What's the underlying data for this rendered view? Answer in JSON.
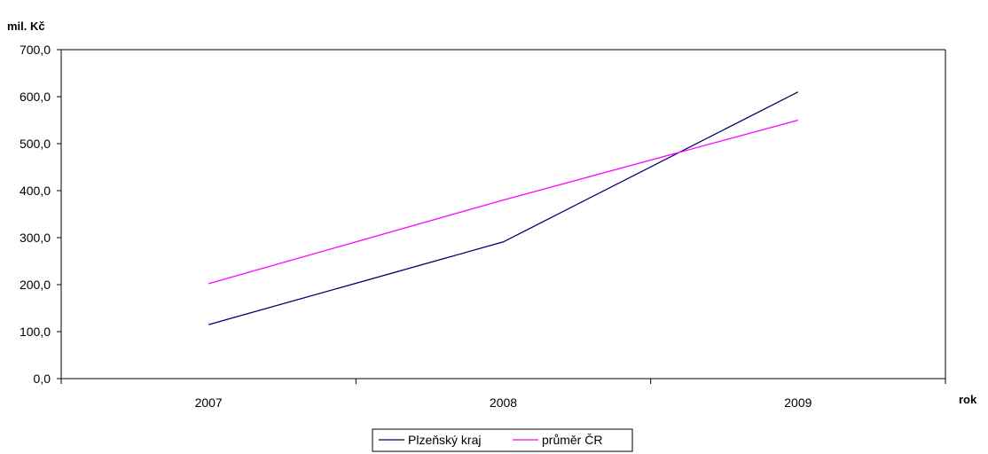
{
  "chart_data": {
    "type": "line",
    "ylabel": "mil. Kč",
    "xlabel": "rok",
    "categories": [
      "2007",
      "2008",
      "2009"
    ],
    "ylim": [
      0,
      700
    ],
    "yticks": [
      "0,0",
      "100,0",
      "200,0",
      "300,0",
      "400,0",
      "500,0",
      "600,0",
      "700,0"
    ],
    "grid": false,
    "legend_position": "bottom",
    "series": [
      {
        "name": "Plzeňský kraj",
        "color": "#000066",
        "values": [
          115,
          291,
          610
        ]
      },
      {
        "name": "průměr ČR",
        "color": "#ff00ff",
        "values": [
          202,
          380,
          550
        ]
      }
    ]
  }
}
